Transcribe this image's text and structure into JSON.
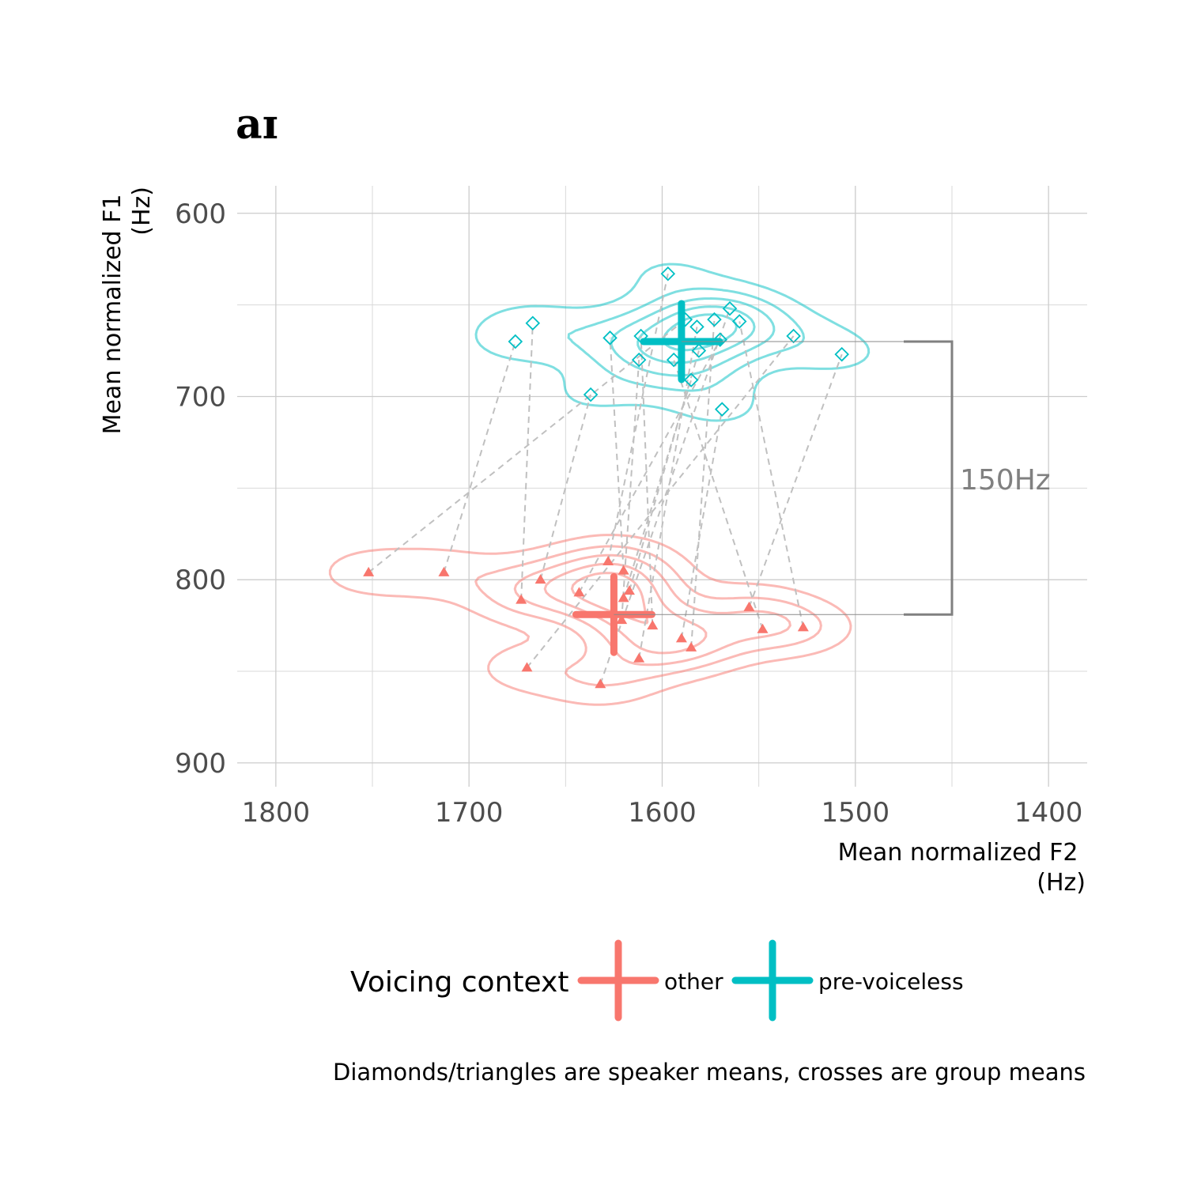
{
  "chart_data": {
    "type": "scatter",
    "title": "aɪ",
    "xlabel": [
      "Mean normalized F2",
      "(Hz)"
    ],
    "ylabel": [
      "Mean normalized F1",
      "(Hz)"
    ],
    "x_reversed": true,
    "y_reversed": true,
    "xlim": [
      1820,
      1380
    ],
    "ylim": [
      585,
      913
    ],
    "x_ticks": [
      1800,
      1700,
      1600,
      1500,
      1400
    ],
    "y_ticks": [
      600,
      700,
      800,
      900
    ],
    "grid": true,
    "legend_title": "Voicing context",
    "legend_position": "bottom",
    "series": [
      {
        "name": "other",
        "color": "#F8766D",
        "marker": "triangle",
        "mean": {
          "x": 1625,
          "y": 819
        },
        "points": [
          {
            "x": 1752,
            "y": 796
          },
          {
            "x": 1713,
            "y": 796
          },
          {
            "x": 1663,
            "y": 800
          },
          {
            "x": 1673,
            "y": 811
          },
          {
            "x": 1643,
            "y": 807
          },
          {
            "x": 1628,
            "y": 790
          },
          {
            "x": 1620,
            "y": 795
          },
          {
            "x": 1617,
            "y": 806
          },
          {
            "x": 1620,
            "y": 810
          },
          {
            "x": 1621,
            "y": 822
          },
          {
            "x": 1605,
            "y": 825
          },
          {
            "x": 1612,
            "y": 843
          },
          {
            "x": 1590,
            "y": 832
          },
          {
            "x": 1585,
            "y": 837
          },
          {
            "x": 1555,
            "y": 815
          },
          {
            "x": 1548,
            "y": 827
          },
          {
            "x": 1527,
            "y": 826
          },
          {
            "x": 1670,
            "y": 848
          },
          {
            "x": 1632,
            "y": 857
          }
        ]
      },
      {
        "name": "pre-voiceless",
        "color": "#00BFC4",
        "marker": "diamond",
        "mean": {
          "x": 1590,
          "y": 670
        },
        "points": [
          {
            "x": 1597,
            "y": 633
          },
          {
            "x": 1676,
            "y": 670
          },
          {
            "x": 1667,
            "y": 660
          },
          {
            "x": 1627,
            "y": 668
          },
          {
            "x": 1611,
            "y": 667
          },
          {
            "x": 1612,
            "y": 680
          },
          {
            "x": 1594,
            "y": 680
          },
          {
            "x": 1588,
            "y": 658
          },
          {
            "x": 1582,
            "y": 662
          },
          {
            "x": 1581,
            "y": 675
          },
          {
            "x": 1573,
            "y": 658
          },
          {
            "x": 1565,
            "y": 652
          },
          {
            "x": 1560,
            "y": 659
          },
          {
            "x": 1570,
            "y": 669
          },
          {
            "x": 1585,
            "y": 691
          },
          {
            "x": 1637,
            "y": 699
          },
          {
            "x": 1569,
            "y": 707
          },
          {
            "x": 1532,
            "y": 667
          },
          {
            "x": 1507,
            "y": 677
          }
        ]
      }
    ],
    "annotation": {
      "label": "150Hz",
      "y_from": 670,
      "y_to": 819
    },
    "caption": "Diamonds/triangles are speaker means, crosses are group means"
  }
}
